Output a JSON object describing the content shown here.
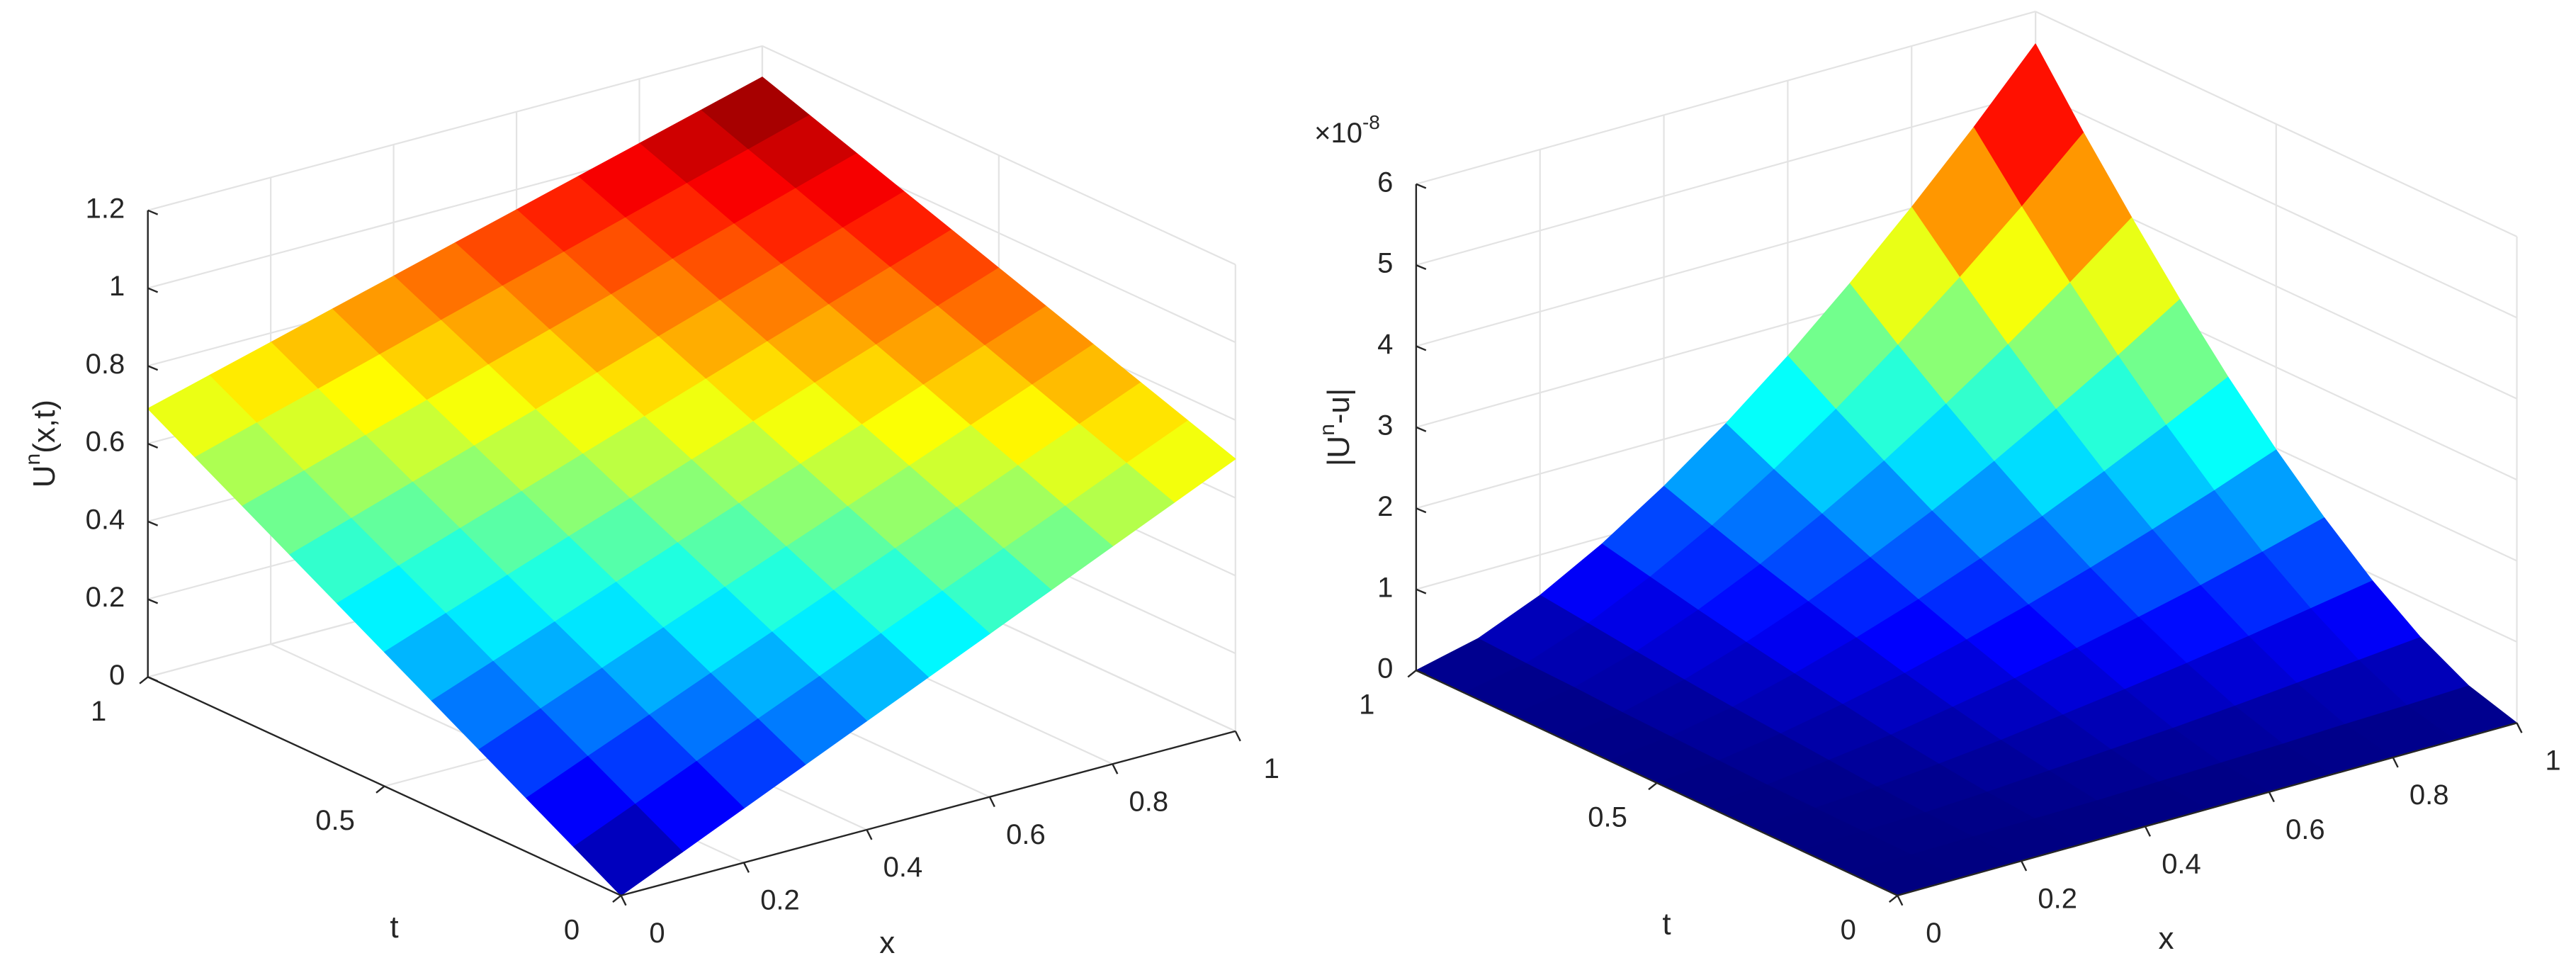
{
  "chart_data": [
    {
      "type": "surface",
      "colormap": "jet",
      "x": [
        0,
        0.1,
        0.2,
        0.3,
        0.4,
        0.5,
        0.6,
        0.7,
        0.8,
        0.9,
        1
      ],
      "y": [
        0,
        0.1,
        0.2,
        0.3,
        0.4,
        0.5,
        0.6,
        0.7,
        0.8,
        0.9,
        1
      ],
      "z": [
        [
          0,
          0.07,
          0.14,
          0.21,
          0.28,
          0.35,
          0.42,
          0.49,
          0.56,
          0.63,
          0.7
        ],
        [
          0.069,
          0.136,
          0.204,
          0.271,
          0.338,
          0.406,
          0.473,
          0.54,
          0.607,
          0.675,
          0.742
        ],
        [
          0.138,
          0.203,
          0.267,
          0.332,
          0.396,
          0.461,
          0.526,
          0.59,
          0.655,
          0.719,
          0.784
        ],
        [
          0.207,
          0.269,
          0.331,
          0.393,
          0.455,
          0.517,
          0.578,
          0.64,
          0.702,
          0.764,
          0.826
        ],
        [
          0.276,
          0.335,
          0.394,
          0.454,
          0.513,
          0.572,
          0.631,
          0.69,
          0.75,
          0.809,
          0.868
        ],
        [
          0.345,
          0.402,
          0.458,
          0.515,
          0.571,
          0.628,
          0.684,
          0.741,
          0.797,
          0.854,
          0.91
        ],
        [
          0.414,
          0.468,
          0.522,
          0.575,
          0.629,
          0.683,
          0.737,
          0.791,
          0.844,
          0.898,
          0.952
        ],
        [
          0.483,
          0.534,
          0.585,
          0.636,
          0.687,
          0.739,
          0.79,
          0.841,
          0.892,
          0.943,
          0.994
        ],
        [
          0.552,
          0.6,
          0.649,
          0.697,
          0.746,
          0.794,
          0.842,
          0.891,
          0.939,
          0.988,
          1.036
        ],
        [
          0.621,
          0.667,
          0.712,
          0.758,
          0.804,
          0.85,
          0.895,
          0.941,
          0.987,
          1.032,
          1.078
        ],
        [
          0.69,
          0.733,
          0.776,
          0.819,
          0.862,
          0.905,
          0.948,
          0.991,
          1.034,
          1.077,
          1.12
        ]
      ],
      "xlabel": "x",
      "ylabel": "t",
      "zlabel": [
        "U",
        "n",
        "(x,t)"
      ],
      "xlim": [
        0,
        1
      ],
      "ylim": [
        0,
        1
      ],
      "zlim": [
        0,
        1.2
      ],
      "xticks": [
        0,
        0.2,
        0.4,
        0.6,
        0.8,
        1
      ],
      "yticks": [
        0,
        0.5,
        1
      ],
      "zticks": [
        0,
        0.2,
        0.4,
        0.6,
        0.8,
        1,
        1.2
      ],
      "grid": true
    },
    {
      "type": "surface",
      "colormap": "jet",
      "x": [
        0,
        0.1,
        0.2,
        0.3,
        0.4,
        0.5,
        0.6,
        0.7,
        0.8,
        0.9,
        1
      ],
      "y": [
        0,
        0.1,
        0.2,
        0.3,
        0.4,
        0.5,
        0.6,
        0.7,
        0.8,
        0.9,
        1
      ],
      "z": [
        [
          0,
          0,
          0,
          0,
          0,
          0,
          0,
          0,
          0,
          0,
          0
        ],
        [
          0,
          0.01,
          0.02,
          0.03,
          0.04,
          0.06,
          0.08,
          0.1,
          0.13,
          0.15,
          0.18
        ],
        [
          0,
          0.02,
          0.04,
          0.08,
          0.13,
          0.18,
          0.23,
          0.29,
          0.36,
          0.43,
          0.5
        ],
        [
          0,
          0.03,
          0.08,
          0.15,
          0.23,
          0.33,
          0.43,
          0.54,
          0.66,
          0.79,
          0.92
        ],
        [
          0,
          0.04,
          0.13,
          0.23,
          0.36,
          0.5,
          0.66,
          0.83,
          1.01,
          1.21,
          1.42
        ],
        [
          0,
          0.06,
          0.18,
          0.33,
          0.5,
          0.7,
          0.92,
          1.16,
          1.42,
          1.69,
          1.98
        ],
        [
          0,
          0.08,
          0.23,
          0.43,
          0.66,
          0.92,
          1.21,
          1.52,
          1.86,
          2.22,
          2.6
        ],
        [
          0,
          0.1,
          0.29,
          0.54,
          0.83,
          1.16,
          1.52,
          1.92,
          2.35,
          2.8,
          3.28
        ],
        [
          0,
          0.13,
          0.36,
          0.66,
          1.01,
          1.42,
          1.86,
          2.35,
          2.87,
          3.42,
          4.01
        ],
        [
          0,
          0.15,
          0.43,
          0.79,
          1.21,
          1.69,
          2.22,
          2.8,
          3.42,
          4.08,
          4.78
        ],
        [
          0,
          0.18,
          0.5,
          0.92,
          1.42,
          1.98,
          2.6,
          3.28,
          4.01,
          4.78,
          5.6
        ]
      ],
      "xlabel": "x",
      "ylabel": "t",
      "zlabel": [
        "|U",
        "n",
        "-u|"
      ],
      "exponent_label": [
        "×10",
        "-8"
      ],
      "xlim": [
        0,
        1
      ],
      "ylim": [
        0,
        1
      ],
      "zlim": [
        0,
        6
      ],
      "xticks": [
        0,
        0.2,
        0.4,
        0.6,
        0.8,
        1
      ],
      "yticks": [
        0,
        0.5,
        1
      ],
      "zticks": [
        0,
        1,
        2,
        3,
        4,
        5,
        6
      ],
      "grid": true
    }
  ]
}
